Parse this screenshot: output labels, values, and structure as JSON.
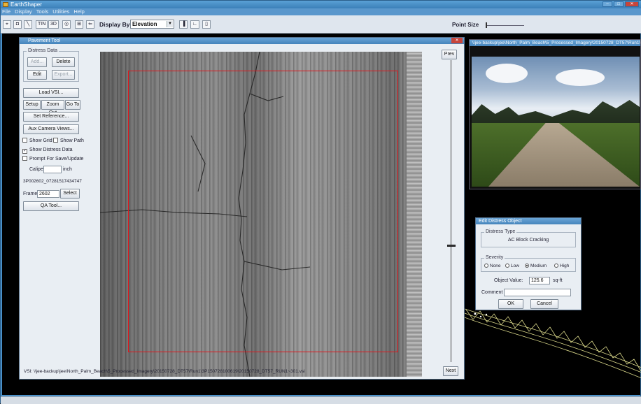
{
  "app": {
    "title": "EarthShaper"
  },
  "menu": [
    "File",
    "Display",
    "Tools",
    "Utilities",
    "Help"
  ],
  "toolbar": {
    "tin_label": "TIN",
    "3d_label": "3D",
    "display_by_label": "Display By",
    "display_by_value": "Elevation",
    "point_size_label": "Point Size"
  },
  "pavement_tool": {
    "title": "Pavement Tool",
    "distress_group_label": "Distress Data",
    "add_label": "Add...",
    "delete_label": "Delete",
    "edit_label": "Edit",
    "export_label": "Export...",
    "load_vsi_label": "Load VSI...",
    "setup_label": "Setup",
    "zoom_out_label": "Zoom Out",
    "goto_label": "Go To",
    "set_reference_label": "Set Reference...",
    "aux_camera_label": "Aux Camera Views...",
    "show_grid_label": "Show Grid",
    "show_path_label": "Show Path",
    "show_distress_label": "Show Distress Data",
    "prompt_save_label": "Prompt For Save/Update",
    "caliper_label": "Caliper",
    "caliper_unit": "inch",
    "image_id": "3P002602_07281517434747",
    "frame_label": "Frame",
    "frame_value": "2602",
    "select_label": "Select",
    "qa_tool_label": "QA Tool...",
    "prev_label": "Prev",
    "next_label": "Next",
    "path_text": "VSI: \\\\jee-backup\\jee\\North_Palm_Beach\\5_Processed_Imagery\\20150728_DT57\\Run1\\3P150728100619\\20150728_DT57_RUN1~301.vsi",
    "checks": {
      "show_grid": false,
      "show_path": false,
      "show_distress": true,
      "prompt_save": false
    }
  },
  "camera": {
    "title": "\\\\jee-backup\\jee\\North_Palm_Beach\\5_Processed_Imagery\\20150728_DT57\\Run1\\..."
  },
  "dialog": {
    "title": "Edit Distress Object",
    "type_group_label": "Distress Type",
    "type_value": "AC Block Cracking",
    "severity_group_label": "Severity",
    "severity_options": [
      "None",
      "Low",
      "Medium",
      "High"
    ],
    "severity_selected": "Medium",
    "object_value_label": "Object Value:",
    "object_value": "125.6",
    "object_value_unit": "sq-ft",
    "comment_label": "Comment",
    "ok_label": "OK",
    "cancel_label": "Cancel"
  },
  "colors": {
    "roi": "#e0161c",
    "accent": "#4584bb",
    "mesh": "#f3f19a"
  }
}
